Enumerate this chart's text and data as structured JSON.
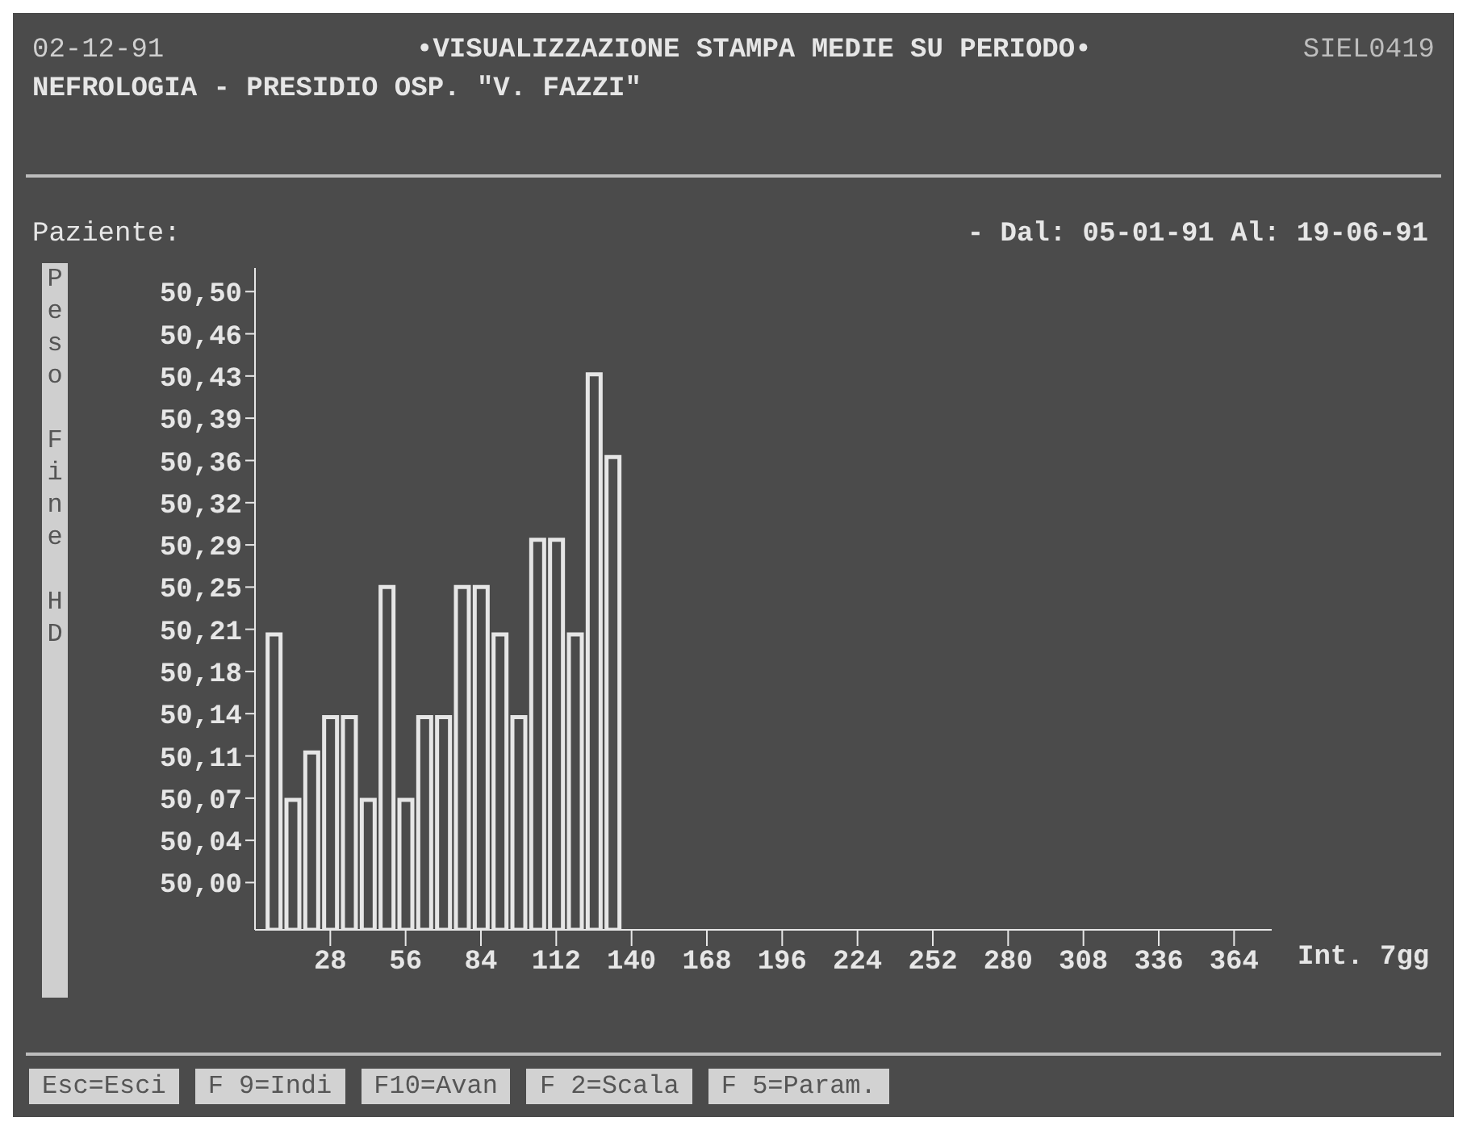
{
  "chart_data": {
    "type": "bar",
    "title": "•VISUALIZZAZIONE STAMPA MEDIE SU PERIODO•",
    "subtitle": "NEFROLOGIA - PRESIDIO OSP. \"V. FAZZI\"",
    "ylabel": "Peso Fine HD",
    "xlabel": "Int. 7gg",
    "annotations": [
      "02-12-91",
      "SIEL0419",
      "Paziente:",
      "- Dal: 05-01-91 Al: 19-06-91",
      "Esc=Esci",
      "F 9=Indi",
      "F10=Avan",
      "F 2=Scala",
      "F 5=Param."
    ],
    "x": [
      7,
      14,
      21,
      28,
      35,
      42,
      49,
      56,
      63,
      70,
      77,
      84,
      91,
      98,
      105,
      112,
      119,
      126,
      133
    ],
    "values": [
      50.21,
      50.07,
      50.11,
      50.14,
      50.14,
      50.07,
      50.25,
      50.07,
      50.14,
      50.14,
      50.25,
      50.25,
      50.21,
      50.14,
      50.29,
      50.29,
      50.21,
      50.43,
      50.36
    ],
    "color": "#e6e6e6",
    "xlim": [
      0,
      378
    ],
    "xticks": [
      28,
      56,
      84,
      112,
      140,
      168,
      196,
      224,
      252,
      280,
      308,
      336,
      364
    ],
    "ylim": [
      49.96,
      50.52
    ],
    "yticks": [
      {
        "value": 50,
        "label": "50,00"
      },
      {
        "value": 50.0357,
        "label": "50,04"
      },
      {
        "value": 50.0714,
        "label": "50,07"
      },
      {
        "value": 50.1071,
        "label": "50,11"
      },
      {
        "value": 50.1429,
        "label": "50,14"
      },
      {
        "value": 50.1786,
        "label": "50,18"
      },
      {
        "value": 50.2143,
        "label": "50,21"
      },
      {
        "value": 50.25,
        "label": "50,25"
      },
      {
        "value": 50.2857,
        "label": "50,29"
      },
      {
        "value": 50.3214,
        "label": "50,32"
      },
      {
        "value": 50.3571,
        "label": "50,36"
      },
      {
        "value": 50.3929,
        "label": "50,39"
      },
      {
        "value": 50.4286,
        "label": "50,43"
      },
      {
        "value": 50.4643,
        "label": "50,46"
      },
      {
        "value": 50.5,
        "label": "50,50"
      }
    ],
    "grid": false,
    "legend": false
  }
}
